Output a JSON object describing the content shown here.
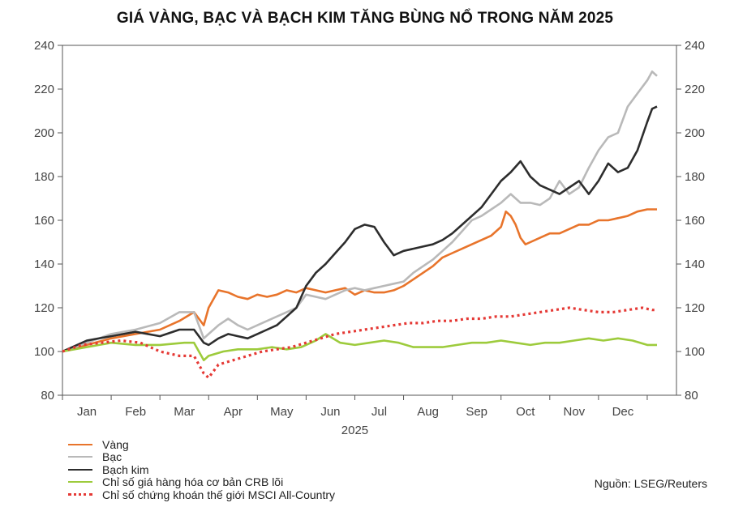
{
  "title": "GIÁ VÀNG, BẠC VÀ BẠCH KIM TĂNG BÙNG NỔ TRONG NĂM 2025",
  "source": "Nguồn: LSEG/Reuters",
  "chart_data": {
    "type": "line",
    "title": "GIÁ VÀNG, BẠC VÀ BẠCH KIM TĂNG BÙNG NỔ TRONG NĂM 2025",
    "xlabel": "2025",
    "ylabel": "",
    "ylim": [
      80,
      240
    ],
    "yticks": [
      80,
      100,
      120,
      140,
      160,
      180,
      200,
      220,
      240
    ],
    "x_unit": "months since start of 2025",
    "xlim": [
      0,
      12.6
    ],
    "month_labels": [
      "Jan",
      "Feb",
      "Mar",
      "Apr",
      "May",
      "Jun",
      "Jul",
      "Aug",
      "Sep",
      "Oct",
      "Nov",
      "Dec"
    ],
    "year_label": "2025",
    "grid": false,
    "legend_position": "bottom-left",
    "series": [
      {
        "name": "Vàng",
        "color": "#e8742b",
        "style": "solid",
        "x": [
          0,
          0.5,
          1,
          1.5,
          2,
          2.4,
          2.7,
          2.9,
          3.0,
          3.2,
          3.4,
          3.6,
          3.8,
          4.0,
          4.2,
          4.4,
          4.6,
          4.8,
          5.0,
          5.2,
          5.4,
          5.6,
          5.8,
          6.0,
          6.2,
          6.4,
          6.6,
          6.8,
          7.0,
          7.2,
          7.4,
          7.6,
          7.8,
          8.0,
          8.2,
          8.4,
          8.6,
          8.8,
          9.0,
          9.1,
          9.2,
          9.3,
          9.4,
          9.5,
          9.6,
          9.8,
          10.0,
          10.2,
          10.4,
          10.6,
          10.8,
          11.0,
          11.2,
          11.4,
          11.6,
          11.8,
          12.0,
          12.2
        ],
        "y": [
          100,
          103,
          106,
          108,
          110,
          114,
          118,
          112,
          120,
          128,
          127,
          125,
          124,
          126,
          125,
          126,
          128,
          127,
          129,
          128,
          127,
          128,
          129,
          126,
          128,
          127,
          127,
          128,
          130,
          133,
          136,
          139,
          143,
          145,
          147,
          149,
          151,
          153,
          157,
          164,
          162,
          158,
          152,
          149,
          150,
          152,
          154,
          154,
          156,
          158,
          158,
          160,
          160,
          161,
          162,
          164,
          165,
          165
        ]
      },
      {
        "name": "Bạc",
        "color": "#b9b9b9",
        "style": "solid",
        "x": [
          0,
          0.5,
          1,
          1.5,
          2,
          2.4,
          2.7,
          2.9,
          3.0,
          3.2,
          3.4,
          3.6,
          3.8,
          4.0,
          4.2,
          4.4,
          4.6,
          4.8,
          5.0,
          5.2,
          5.4,
          5.6,
          5.8,
          6.0,
          6.2,
          6.4,
          6.6,
          6.8,
          7.0,
          7.2,
          7.4,
          7.6,
          7.8,
          8.0,
          8.2,
          8.4,
          8.6,
          8.8,
          9.0,
          9.2,
          9.4,
          9.6,
          9.8,
          10.0,
          10.2,
          10.4,
          10.6,
          10.8,
          11.0,
          11.2,
          11.4,
          11.6,
          11.8,
          12.0,
          12.1,
          12.2
        ],
        "y": [
          100,
          104,
          108,
          110,
          113,
          118,
          118,
          106,
          108,
          112,
          115,
          112,
          110,
          112,
          114,
          116,
          118,
          120,
          126,
          125,
          124,
          126,
          128,
          129,
          128,
          129,
          130,
          131,
          132,
          136,
          139,
          142,
          146,
          150,
          155,
          160,
          162,
          165,
          168,
          172,
          168,
          168,
          167,
          170,
          178,
          172,
          175,
          184,
          192,
          198,
          200,
          212,
          218,
          224,
          228,
          226
        ]
      },
      {
        "name": "Bạch kim",
        "color": "#2d2d2d",
        "style": "solid",
        "x": [
          0,
          0.5,
          1,
          1.5,
          2,
          2.4,
          2.7,
          2.9,
          3.0,
          3.2,
          3.4,
          3.6,
          3.8,
          4.0,
          4.2,
          4.4,
          4.6,
          4.8,
          5.0,
          5.2,
          5.4,
          5.6,
          5.8,
          6.0,
          6.2,
          6.4,
          6.6,
          6.8,
          7.0,
          7.2,
          7.4,
          7.6,
          7.8,
          8.0,
          8.2,
          8.4,
          8.6,
          8.8,
          9.0,
          9.2,
          9.4,
          9.6,
          9.8,
          10.0,
          10.2,
          10.4,
          10.6,
          10.8,
          11.0,
          11.2,
          11.4,
          11.6,
          11.8,
          12.0,
          12.1,
          12.2
        ],
        "y": [
          100,
          105,
          107,
          109,
          107,
          110,
          110,
          104,
          103,
          106,
          108,
          107,
          106,
          108,
          110,
          112,
          116,
          120,
          130,
          136,
          140,
          145,
          150,
          156,
          158,
          157,
          150,
          144,
          146,
          147,
          148,
          149,
          151,
          154,
          158,
          162,
          166,
          172,
          178,
          182,
          187,
          180,
          176,
          174,
          172,
          175,
          178,
          172,
          178,
          186,
          182,
          184,
          192,
          205,
          211,
          212
        ]
      },
      {
        "name": "Chỉ số giá hàng hóa cơ bản CRB lõi",
        "color": "#9dcb3c",
        "style": "solid",
        "x": [
          0,
          0.5,
          1,
          1.5,
          2,
          2.5,
          2.7,
          2.9,
          3.0,
          3.3,
          3.6,
          4.0,
          4.3,
          4.6,
          4.9,
          5.2,
          5.4,
          5.7,
          6.0,
          6.3,
          6.6,
          6.9,
          7.2,
          7.5,
          7.8,
          8.1,
          8.4,
          8.7,
          9.0,
          9.3,
          9.6,
          9.9,
          10.2,
          10.5,
          10.8,
          11.1,
          11.4,
          11.7,
          12.0,
          12.2
        ],
        "y": [
          100,
          102,
          104,
          103,
          103,
          104,
          104,
          96,
          98,
          100,
          101,
          101,
          102,
          101,
          102,
          105,
          108,
          104,
          103,
          104,
          105,
          104,
          102,
          102,
          102,
          103,
          104,
          104,
          105,
          104,
          103,
          104,
          104,
          105,
          106,
          105,
          106,
          105,
          103,
          103
        ]
      },
      {
        "name": "Chỉ số chứng khoán thế giới MSCI All-Country",
        "color": "#e53935",
        "style": "dotted",
        "x": [
          0,
          0.4,
          0.8,
          1.2,
          1.6,
          2.0,
          2.4,
          2.7,
          2.9,
          3.0,
          3.2,
          3.5,
          3.8,
          4.1,
          4.4,
          4.7,
          5.0,
          5.3,
          5.6,
          5.9,
          6.2,
          6.5,
          6.8,
          7.1,
          7.4,
          7.7,
          8.0,
          8.3,
          8.6,
          8.9,
          9.2,
          9.5,
          9.8,
          10.1,
          10.4,
          10.7,
          11.0,
          11.3,
          11.6,
          11.9,
          12.1,
          12.2
        ],
        "y": [
          100,
          103,
          104,
          105,
          104,
          100,
          98,
          98,
          90,
          88,
          94,
          96,
          98,
          100,
          101,
          102,
          104,
          106,
          108,
          109,
          110,
          111,
          112,
          113,
          113,
          114,
          114,
          115,
          115,
          116,
          116,
          117,
          118,
          119,
          120,
          119,
          118,
          118,
          119,
          120,
          119,
          119
        ]
      }
    ]
  }
}
